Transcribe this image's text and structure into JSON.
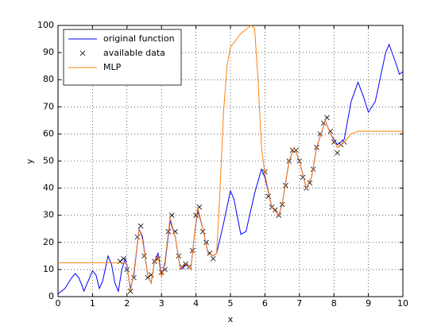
{
  "chart_data": {
    "type": "line",
    "x_label": "x",
    "y_label": "y",
    "xlim": [
      0,
      10
    ],
    "ylim": [
      0,
      100
    ],
    "xticks": [
      0,
      1,
      2,
      3,
      4,
      5,
      6,
      7,
      8,
      9,
      10
    ],
    "yticks": [
      0,
      10,
      20,
      30,
      40,
      50,
      60,
      70,
      80,
      90,
      100
    ],
    "grid": true,
    "legend": "top-left",
    "series": [
      {
        "name": "original function",
        "color": "#0000ff",
        "mode": "line",
        "x": [
          0,
          0.2,
          0.4,
          0.5,
          0.6,
          0.7,
          0.75,
          0.85,
          1.0,
          1.1,
          1.2,
          1.3,
          1.45,
          1.55,
          1.65,
          1.75,
          1.85,
          1.95,
          2.0,
          2.1,
          2.2,
          2.35,
          2.45,
          2.6,
          2.7,
          2.8,
          2.9,
          3.0,
          3.1,
          3.25,
          3.4,
          3.55,
          3.65,
          3.75,
          3.85,
          3.95,
          4.05,
          4.2,
          4.35,
          4.5,
          4.6,
          4.8,
          5.0,
          5.1,
          5.3,
          5.45,
          5.7,
          5.9,
          6.0,
          6.2,
          6.4,
          6.5,
          6.7,
          6.85,
          7.0,
          7.2,
          7.35,
          7.5,
          7.75,
          7.9,
          8.1,
          8.3,
          8.5,
          8.7,
          8.85,
          9.0,
          9.2,
          9.5,
          9.6,
          9.8,
          9.9,
          10
        ],
        "values": [
          1,
          3,
          7,
          8.5,
          7,
          4,
          2,
          5,
          9.5,
          8,
          3,
          6,
          15,
          12,
          5,
          2,
          10,
          14,
          11,
          3,
          8,
          25,
          22,
          8,
          5,
          13,
          16,
          8,
          12,
          28,
          22,
          10,
          11,
          12,
          10,
          22,
          32,
          25,
          16,
          15,
          16,
          27,
          39,
          36,
          23,
          24,
          38,
          47,
          44,
          33,
          30,
          34,
          50,
          55,
          50,
          40,
          44,
          55,
          65,
          60,
          56,
          58,
          72,
          79,
          74,
          68,
          72,
          90,
          93,
          86,
          82,
          83
        ]
      },
      {
        "name": "available data",
        "color": "#000000",
        "mode": "markers",
        "x": [
          1.8,
          1.9,
          2.0,
          2.1,
          2.2,
          2.3,
          2.4,
          2.5,
          2.6,
          2.7,
          2.8,
          2.9,
          3.0,
          3.1,
          3.2,
          3.3,
          3.4,
          3.5,
          3.6,
          3.7,
          3.8,
          3.9,
          4.0,
          4.1,
          4.2,
          4.3,
          4.4,
          4.5,
          6.0,
          6.1,
          6.2,
          6.3,
          6.4,
          6.5,
          6.6,
          6.7,
          6.8,
          6.9,
          7.0,
          7.1,
          7.2,
          7.3,
          7.4,
          7.5,
          7.6,
          7.7,
          7.8,
          7.9,
          8.0,
          8.1,
          8.2,
          8.3
        ],
        "values": [
          13,
          14,
          10,
          2,
          7,
          22,
          26,
          15,
          7,
          8,
          13,
          14,
          9,
          10,
          24,
          30,
          24,
          15,
          11,
          12,
          11,
          17,
          30,
          33,
          24,
          20,
          16,
          14,
          46,
          37,
          33,
          32,
          30,
          34,
          41,
          50,
          54,
          54,
          50,
          44,
          40,
          42,
          47,
          55,
          60,
          64,
          66,
          61,
          57,
          53,
          56,
          57
        ]
      },
      {
        "name": "MLP",
        "color": "#ff7f0e",
        "mode": "line",
        "x": [
          0,
          1.9,
          2.0,
          2.1,
          2.2,
          2.35,
          2.45,
          2.6,
          2.7,
          2.8,
          2.9,
          3.0,
          3.1,
          3.25,
          3.4,
          3.55,
          3.65,
          3.75,
          3.85,
          3.95,
          4.05,
          4.2,
          4.35,
          4.5,
          4.6,
          4.7,
          4.8,
          4.9,
          5.0,
          5.3,
          5.6,
          5.7,
          5.8,
          5.9,
          6.0,
          6.2,
          6.4,
          6.5,
          6.7,
          6.85,
          7.0,
          7.2,
          7.35,
          7.5,
          7.75,
          7.9,
          8.1,
          8.3,
          8.5,
          8.7,
          10
        ],
        "values": [
          12.5,
          12.5,
          12,
          2,
          9,
          25,
          21,
          8,
          5,
          13,
          15,
          7,
          13,
          29,
          22,
          10,
          12,
          12,
          10,
          22,
          33,
          25,
          16,
          15,
          16,
          40,
          68,
          85,
          92,
          97,
          100,
          99,
          80,
          55,
          45,
          33,
          30,
          34,
          50,
          55,
          50,
          40,
          44,
          55,
          65,
          60,
          55,
          57,
          60,
          61,
          61
        ]
      }
    ]
  }
}
